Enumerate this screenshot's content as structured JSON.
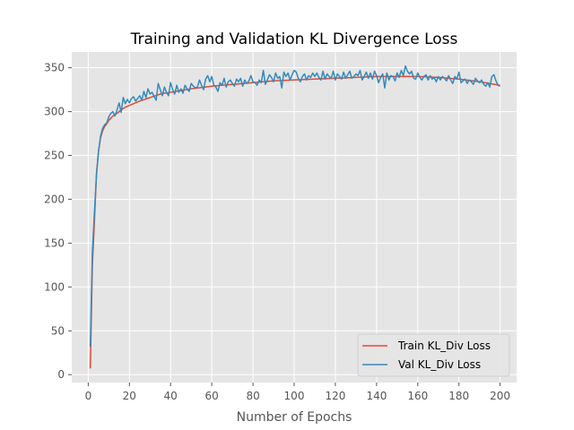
{
  "chart_data": {
    "type": "line",
    "title": "Training and Validation KL Divergence Loss",
    "xlabel": "Number of Epochs",
    "ylabel": "",
    "xlim": [
      -8,
      208
    ],
    "ylim": [
      -9,
      368
    ],
    "xticks": [
      0,
      20,
      40,
      60,
      80,
      100,
      120,
      140,
      160,
      180,
      200
    ],
    "yticks": [
      0,
      50,
      100,
      150,
      200,
      250,
      300,
      350
    ],
    "grid": true,
    "legend_position": "lower-right",
    "colors": {
      "train": "#E24A33",
      "val": "#348ABD",
      "axes_bg": "#E5E5E5",
      "grid": "#ffffff"
    },
    "series": [
      {
        "name": "Train KL_Div Loss",
        "color": "#E24A33",
        "x": [
          1,
          2,
          3,
          4,
          5,
          6,
          7,
          8,
          9,
          10,
          12,
          14,
          16,
          18,
          20,
          25,
          30,
          35,
          40,
          50,
          60,
          70,
          80,
          90,
          100,
          110,
          120,
          130,
          140,
          150,
          160,
          170,
          180,
          190,
          195,
          200
        ],
        "y": [
          7,
          125,
          175,
          230,
          255,
          270,
          278,
          283,
          286,
          290,
          295,
          298,
          302,
          305,
          307,
          312,
          316,
          320,
          322,
          326,
          329,
          331,
          333,
          335,
          336,
          337,
          338,
          339,
          340,
          340,
          340,
          339,
          337,
          334,
          332,
          330
        ]
      },
      {
        "name": "Val KL_Div Loss",
        "color": "#348ABD",
        "x": [
          1,
          2,
          3,
          4,
          5,
          6,
          7,
          8,
          9,
          10,
          11,
          12,
          13,
          14,
          15,
          16,
          17,
          18,
          19,
          20,
          21,
          22,
          23,
          24,
          25,
          26,
          27,
          28,
          29,
          30,
          31,
          32,
          33,
          34,
          35,
          36,
          37,
          38,
          39,
          40,
          41,
          42,
          43,
          44,
          45,
          46,
          47,
          48,
          49,
          50,
          51,
          52,
          53,
          54,
          55,
          56,
          57,
          58,
          59,
          60,
          61,
          62,
          63,
          64,
          65,
          66,
          67,
          68,
          69,
          70,
          71,
          72,
          73,
          74,
          75,
          76,
          77,
          78,
          79,
          80,
          81,
          82,
          83,
          84,
          85,
          86,
          87,
          88,
          89,
          90,
          91,
          92,
          93,
          94,
          95,
          96,
          97,
          98,
          99,
          100,
          101,
          102,
          103,
          104,
          105,
          106,
          107,
          108,
          109,
          110,
          111,
          112,
          113,
          114,
          115,
          116,
          117,
          118,
          119,
          120,
          121,
          122,
          123,
          124,
          125,
          126,
          127,
          128,
          129,
          130,
          131,
          132,
          133,
          134,
          135,
          136,
          137,
          138,
          139,
          140,
          141,
          142,
          143,
          144,
          145,
          146,
          147,
          148,
          149,
          150,
          151,
          152,
          153,
          154,
          155,
          156,
          157,
          158,
          159,
          160,
          161,
          162,
          163,
          164,
          165,
          166,
          167,
          168,
          169,
          170,
          171,
          172,
          173,
          174,
          175,
          176,
          177,
          178,
          179,
          180,
          181,
          182,
          183,
          184,
          185,
          186,
          187,
          188,
          189,
          190,
          191,
          192,
          193,
          194,
          195,
          196,
          197,
          198,
          199,
          200
        ],
        "y": [
          32,
          140,
          185,
          228,
          255,
          272,
          281,
          285,
          287,
          294,
          298,
          300,
          295,
          302,
          310,
          299,
          316,
          309,
          314,
          310,
          315,
          317,
          312,
          315,
          318,
          313,
          323,
          316,
          326,
          320,
          322,
          317,
          313,
          332,
          325,
          318,
          328,
          322,
          318,
          333,
          325,
          320,
          330,
          322,
          326,
          321,
          330,
          326,
          323,
          332,
          329,
          327,
          328,
          336,
          330,
          325,
          337,
          341,
          334,
          340,
          330,
          328,
          323,
          333,
          330,
          338,
          328,
          334,
          336,
          332,
          329,
          337,
          334,
          338,
          329,
          336,
          332,
          335,
          341,
          334,
          333,
          330,
          336,
          333,
          347,
          331,
          336,
          342,
          339,
          334,
          344,
          338,
          340,
          327,
          345,
          340,
          344,
          336,
          342,
          347,
          345,
          338,
          334,
          340,
          343,
          336,
          341,
          339,
          344,
          340,
          344,
          339,
          336,
          346,
          337,
          343,
          340,
          338,
          346,
          336,
          343,
          340,
          337,
          345,
          338,
          342,
          346,
          338,
          340,
          343,
          341,
          347,
          336,
          340,
          345,
          338,
          344,
          337,
          346,
          341,
          333,
          339,
          343,
          327,
          344,
          336,
          341,
          340,
          335,
          344,
          339,
          347,
          341,
          352,
          346,
          343,
          346,
          338,
          337,
          344,
          339,
          336,
          340,
          342,
          336,
          341,
          337,
          339,
          334,
          340,
          336,
          340,
          338,
          335,
          341,
          336,
          332,
          340,
          337,
          345,
          333,
          335,
          337,
          332,
          336,
          334,
          331,
          338,
          335,
          333,
          336,
          331,
          329,
          333,
          328,
          340,
          342,
          335,
          330,
          329
        ]
      }
    ]
  }
}
